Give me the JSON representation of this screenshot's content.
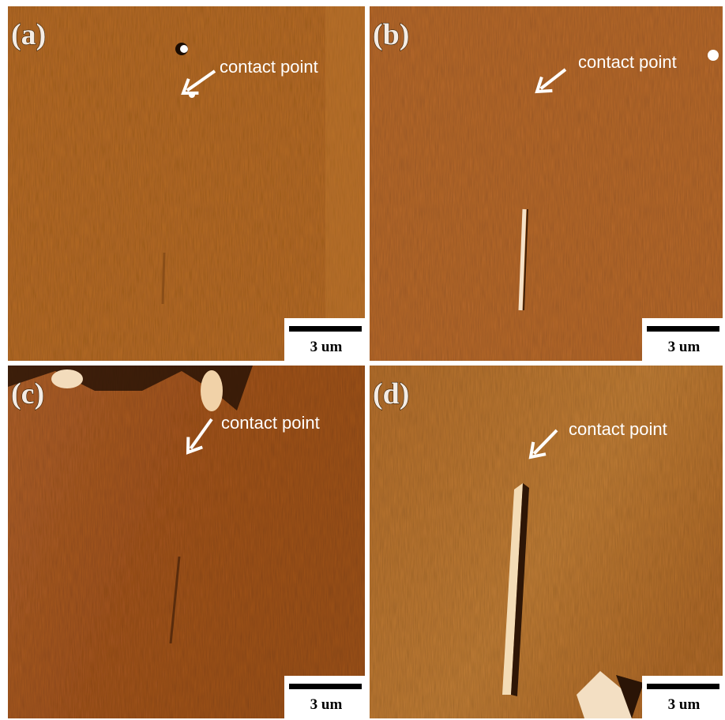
{
  "panels": [
    {
      "label": "(a)",
      "annotation": "contact point",
      "scale_bar": "3 um"
    },
    {
      "label": "(b)",
      "annotation": "contact point",
      "scale_bar": "3 um"
    },
    {
      "label": "(c)",
      "annotation": "contact point",
      "scale_bar": "3 um"
    },
    {
      "label": "(d)",
      "annotation": "contact point",
      "scale_bar": "3 um"
    }
  ]
}
